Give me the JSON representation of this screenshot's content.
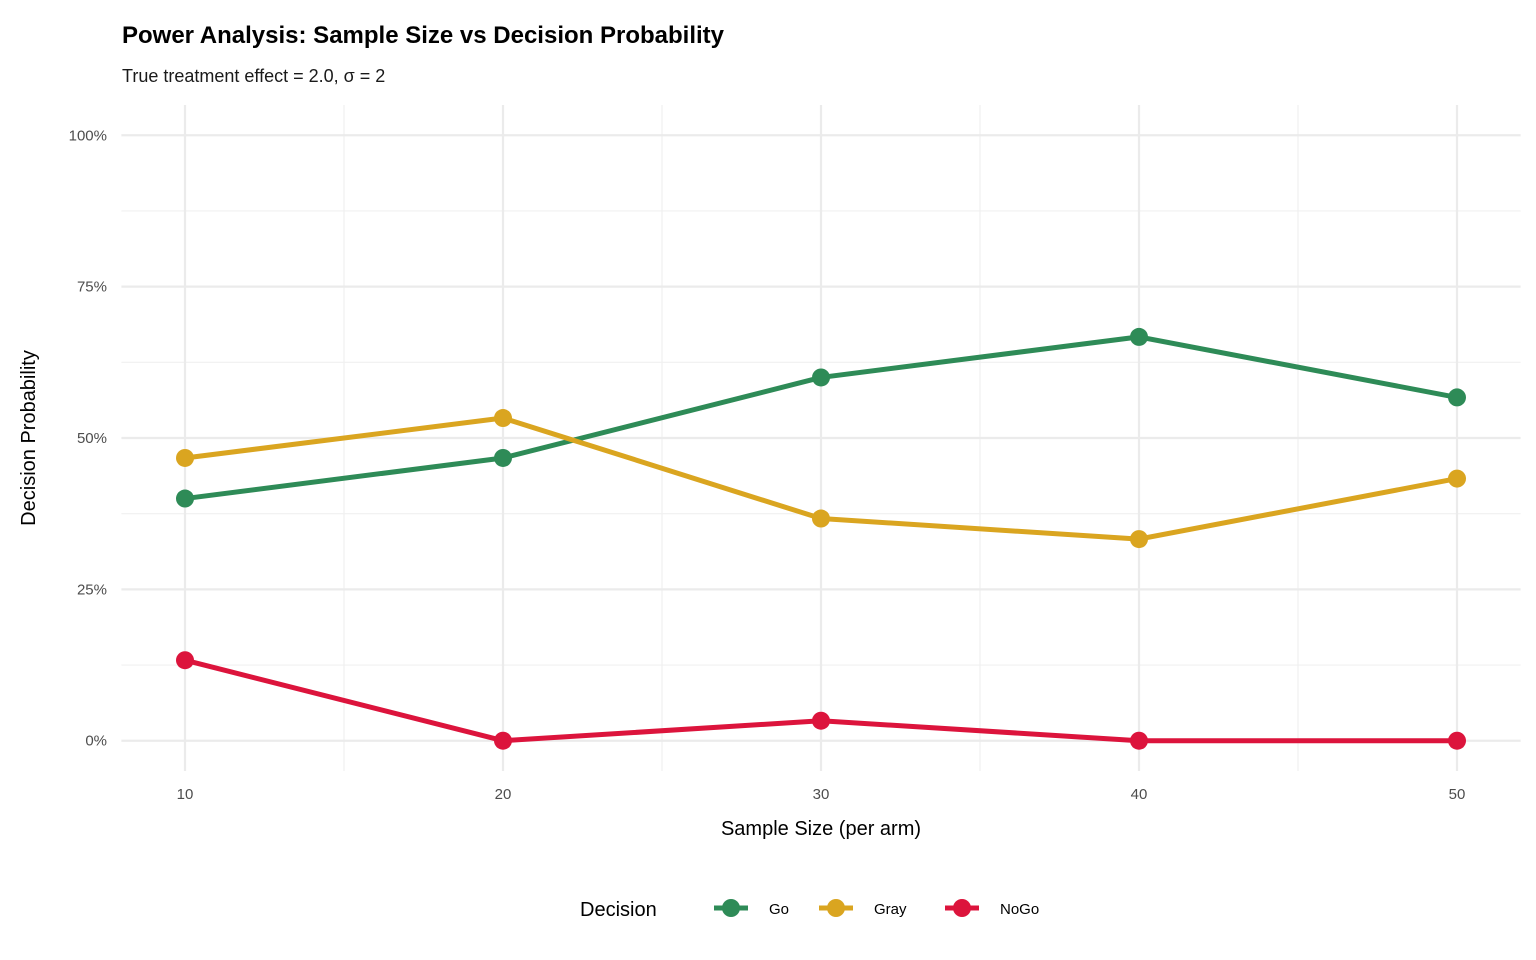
{
  "chart_data": {
    "type": "line",
    "title": "Power Analysis: Sample Size vs Decision Probability",
    "subtitle": "True treatment effect = 2.0, σ = 2",
    "xlabel": "Sample Size (per arm)",
    "ylabel": "Decision Probability",
    "x": [
      10,
      20,
      30,
      40,
      50
    ],
    "xticks": [
      10,
      20,
      30,
      40,
      50
    ],
    "xtick_labels": [
      "10",
      "20",
      "30",
      "40",
      "50"
    ],
    "yticks": [
      0,
      0.25,
      0.5,
      0.75,
      1.0
    ],
    "ytick_labels": [
      "0%",
      "25%",
      "50%",
      "75%",
      "100%"
    ],
    "xlim": [
      8,
      52
    ],
    "ylim": [
      -0.05,
      1.05
    ],
    "grid": true,
    "legend_title": "Decision",
    "legend_placement": "bottom",
    "series": [
      {
        "name": "Go",
        "color": "#2E8B57",
        "values": [
          0.4,
          0.467,
          0.6,
          0.667,
          0.567
        ]
      },
      {
        "name": "Gray",
        "color": "#DAA520",
        "values": [
          0.467,
          0.533,
          0.367,
          0.333,
          0.433
        ]
      },
      {
        "name": "NoGo",
        "color": "#DC143C",
        "values": [
          0.133,
          0.0,
          0.033,
          0.0,
          0.0
        ]
      }
    ]
  }
}
